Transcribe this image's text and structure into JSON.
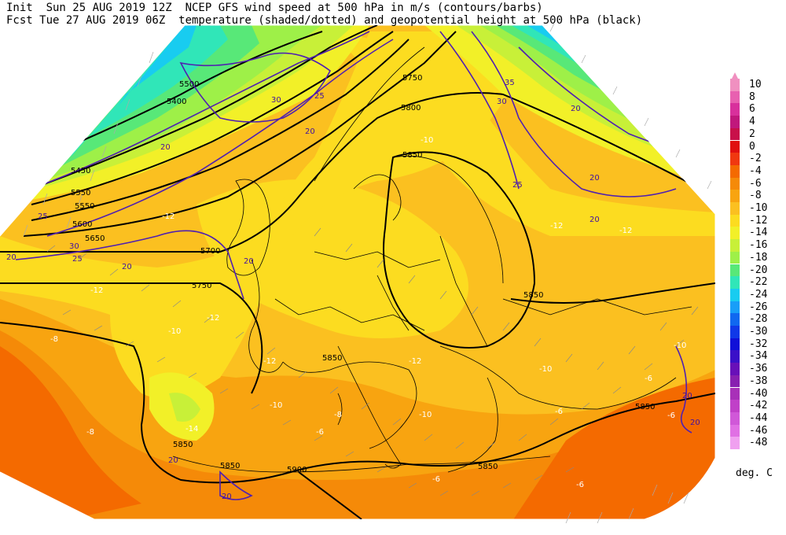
{
  "header": {
    "line1": "Init  Sun 25 AUG 2019 12Z  NCEP GFS wind speed at 500 hPa in m/s (contours/barbs)",
    "line2": "Fcst Tue 27 AUG 2019 06Z  temperature (shaded/dotted) and geopotential height at 500 hPa (black)"
  },
  "legend": {
    "unit": "deg. C",
    "entries": [
      {
        "label": "10",
        "color": "#f090c0"
      },
      {
        "label": "8",
        "color": "#e860b0"
      },
      {
        "label": "6",
        "color": "#d8309c"
      },
      {
        "label": "4",
        "color": "#c0187c"
      },
      {
        "label": "2",
        "color": "#c8104a"
      },
      {
        "label": "0",
        "color": "#e01010"
      },
      {
        "label": "-2",
        "color": "#f03810"
      },
      {
        "label": "-4",
        "color": "#f46a00"
      },
      {
        "label": "-6",
        "color": "#f58a08"
      },
      {
        "label": "-8",
        "color": "#f8a410"
      },
      {
        "label": "-10",
        "color": "#fbc020"
      },
      {
        "label": "-12",
        "color": "#fcdc20"
      },
      {
        "label": "-14",
        "color": "#f2f028"
      },
      {
        "label": "-16",
        "color": "#c8f038"
      },
      {
        "label": "-18",
        "color": "#9ef048"
      },
      {
        "label": "-20",
        "color": "#58e878"
      },
      {
        "label": "-22",
        "color": "#30e6b8"
      },
      {
        "label": "-24",
        "color": "#18ccf0"
      },
      {
        "label": "-26",
        "color": "#189ef8"
      },
      {
        "label": "-28",
        "color": "#1068f0"
      },
      {
        "label": "-30",
        "color": "#1038e8"
      },
      {
        "label": "-32",
        "color": "#1010d8"
      },
      {
        "label": "-34",
        "color": "#3a10c8"
      },
      {
        "label": "-36",
        "color": "#6810b8"
      },
      {
        "label": "-38",
        "color": "#8820b0"
      },
      {
        "label": "-40",
        "color": "#a830b8"
      },
      {
        "label": "-42",
        "color": "#c040c8"
      },
      {
        "label": "-44",
        "color": "#d058d8"
      },
      {
        "label": "-46",
        "color": "#e070e4"
      },
      {
        "label": "-48",
        "color": "#f0a0f0"
      }
    ]
  },
  "map": {
    "height_labels": [
      "5400",
      "5450",
      "5500",
      "5550",
      "5600",
      "5650",
      "5700",
      "5750",
      "5800",
      "5850",
      "5900",
      "5850",
      "5850",
      "5850",
      "5850",
      "5800",
      "5850"
    ],
    "wind_labels": [
      "20",
      "25",
      "30",
      "20",
      "25",
      "20",
      "20",
      "20",
      "25",
      "30",
      "35",
      "20",
      "25",
      "20",
      "30",
      "20",
      "20",
      "20",
      "20",
      "20"
    ],
    "temp_labels": [
      "-12",
      "-10",
      "-12",
      "-12",
      "-12",
      "-10",
      "-10",
      "-10",
      "-8",
      "-8",
      "-6",
      "-6",
      "-6",
      "-6",
      "-10",
      "-14",
      "-12",
      "-12",
      "-6",
      "-6",
      "-10",
      "-8",
      "-12"
    ]
  }
}
